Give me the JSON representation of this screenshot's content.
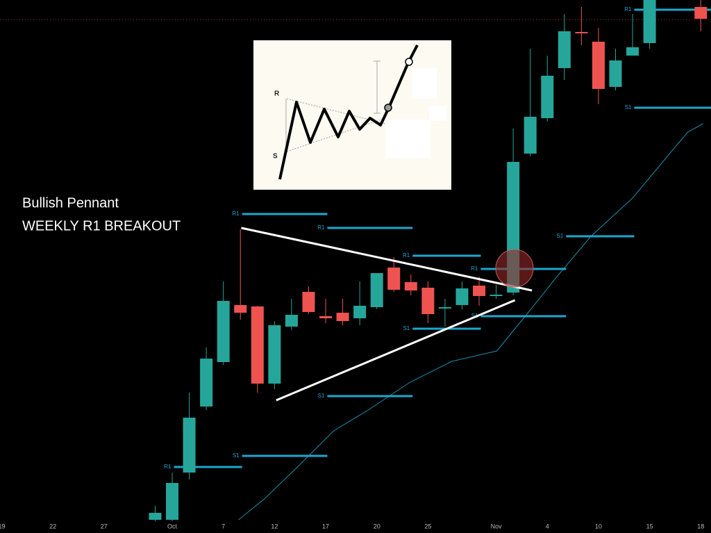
{
  "chart_data": {
    "type": "candlestick",
    "annotations": [
      "Bullish Pennant",
      "WEEKLY R1 BREAKOUT"
    ],
    "up_color": "#26a69a",
    "down_color": "#ef5350",
    "pivot_color": "#1ba7cf",
    "ma_color": "#1a8fb0",
    "xlim": [
      -9.1,
      32.6
    ],
    "ylim": [
      0,
      75
    ],
    "xticks": [
      {
        "value": -9,
        "label": "19"
      },
      {
        "value": -6,
        "label": "22"
      },
      {
        "value": -3,
        "label": "27"
      },
      {
        "value": 1,
        "label": "Oct"
      },
      {
        "value": 4,
        "label": "7"
      },
      {
        "value": 7,
        "label": "12"
      },
      {
        "value": 10,
        "label": "17"
      },
      {
        "value": 13,
        "label": "20"
      },
      {
        "value": 16,
        "label": "25"
      },
      {
        "value": 20,
        "label": "Nov"
      },
      {
        "value": 23,
        "label": "4"
      },
      {
        "value": 26,
        "label": "10"
      },
      {
        "value": 29,
        "label": "15"
      },
      {
        "value": 32,
        "label": "18"
      }
    ],
    "open": [
      0.2,
      0.2,
      7.0,
      16.5,
      22.9,
      31.1,
      30.9,
      19.8,
      28.0,
      33.0,
      29.5,
      30.0,
      29.2,
      30.8,
      36.5,
      34.4,
      33.6,
      30.6,
      31.1,
      33.9,
      32.4,
      32.9,
      52.9,
      58.0,
      65.2,
      70.4,
      69.0,
      62.5,
      67.0,
      68.8,
      null,
      null,
      74.0
    ],
    "high": [
      2.2,
      7.0,
      18.5,
      25.0,
      34.5,
      42.0,
      31.0,
      28.8,
      32.0,
      33.8,
      32.0,
      32.0,
      34.5,
      35.7,
      38.0,
      35.5,
      34.5,
      32.0,
      34.5,
      35.2,
      34.0,
      56.5,
      68.0,
      67.0,
      73.0,
      74.0,
      71.0,
      68.0,
      73.0,
      75.0,
      null,
      null,
      75.0
    ],
    "low": [
      0,
      0,
      6.0,
      16.0,
      22.5,
      29.0,
      18.5,
      19.0,
      27.5,
      29.8,
      28.5,
      28.2,
      28.2,
      30.5,
      33.0,
      32.5,
      28.5,
      28.0,
      30.5,
      31.0,
      32.0,
      32.5,
      52.5,
      57.5,
      63.5,
      68.5,
      60.0,
      62.0,
      67.0,
      68.0,
      null,
      null,
      70.5
    ],
    "close": [
      1.2,
      5.5,
      14.9,
      23.4,
      31.7,
      30.0,
      19.8,
      28.2,
      29.7,
      30.1,
      29.2,
      28.8,
      31.0,
      35.7,
      33.3,
      33.2,
      29.8,
      30.8,
      33.5,
      32.4,
      32.6,
      51.7,
      58.2,
      64.1,
      70.5,
      70.2,
      62.2,
      66.3,
      68.2,
      75.0,
      null,
      null,
      72.3
    ],
    "pivots": [
      {
        "label": "R1",
        "level": 44.2,
        "start": 5.1,
        "end": 10.1
      },
      {
        "label": "R1",
        "level": 42.2,
        "start": 10.1,
        "end": 15.1
      },
      {
        "label": "R1",
        "level": 38.2,
        "start": 15.1,
        "end": 19.1
      },
      {
        "label": "R1",
        "level": 36.3,
        "start": 19.1,
        "end": 24.1
      },
      {
        "label": "S1",
        "level": 29.5,
        "start": 19.1,
        "end": 24.1
      },
      {
        "label": "S1",
        "level": 27.7,
        "start": 15.1,
        "end": 19.1
      },
      {
        "label": "S1",
        "level": 18.0,
        "start": 10.1,
        "end": 15.1
      },
      {
        "label": "S1",
        "level": 9.4,
        "start": 5.1,
        "end": 10.1
      },
      {
        "label": "R1",
        "level": 7.8,
        "start": 1.1,
        "end": 5.1
      },
      {
        "label": "S1",
        "level": 41.0,
        "start": 24.1,
        "end": 28.1
      },
      {
        "label": "R1",
        "level": 73.6,
        "start": 28.1,
        "end": 32.6
      },
      {
        "label": "S1",
        "level": 59.5,
        "start": 28.1,
        "end": 32.6
      }
    ],
    "trendlines": [
      {
        "x": [
          5.05,
          22.1
        ],
        "values": [
          42.2,
          33.2
        ]
      },
      {
        "x": [
          7.1,
          21.1
        ],
        "values": [
          17.4,
          31.8
        ]
      }
    ],
    "ma": {
      "x": [
        4.89,
        6.4,
        8.43,
        10.47,
        12.5,
        14.95,
        17.4,
        20.04,
        21.87,
        23.5,
        25.56,
        28.0,
        30.04,
        31.24,
        32.14
      ],
      "values": [
        0.2,
        3.2,
        8.0,
        13.0,
        16.0,
        20.0,
        23.0,
        24.5,
        30.0,
        35.0,
        41.0,
        46.5,
        52.5,
        56.0,
        57.2
      ]
    },
    "inset": {
      "r_label": "R",
      "s_label": "S"
    }
  }
}
